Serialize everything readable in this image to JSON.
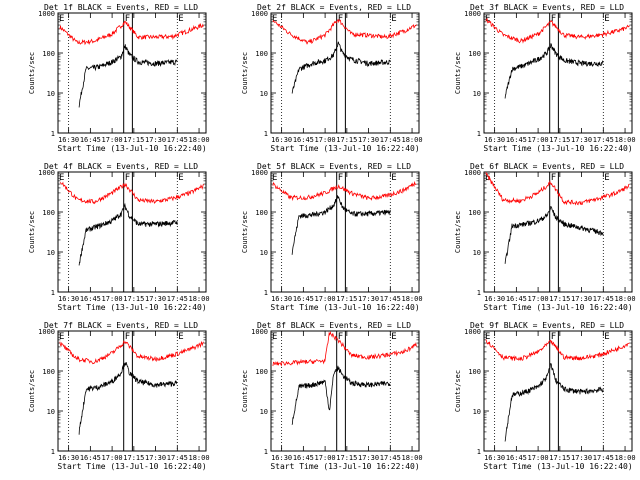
{
  "common": {
    "ylabel": "Counts/sec",
    "xlabel": "Start Time (13-Jul-10 16:22:40)",
    "xticks": [
      "16:30",
      "16:45",
      "17:00",
      "17:15",
      "17:30",
      "17:45",
      "18:00"
    ],
    "yticks": [
      "1",
      "10",
      "100",
      "1000"
    ],
    "markers": {
      "E_left": "E",
      "F": "F",
      "E_right": "E"
    },
    "colors": {
      "events": "#000000",
      "lld": "#ff0000",
      "axes": "#000000"
    }
  },
  "chart_data": [
    {
      "type": "line",
      "title": "Det 1f BLACK = Events, RED = LLD",
      "series": [
        {
          "name": "Events",
          "color": "#000000"
        },
        {
          "name": "LLD",
          "color": "#ff0000"
        }
      ],
      "xlim": [
        "16:22:40",
        "18:00"
      ],
      "ylim": [
        1,
        1000
      ],
      "yscale": "log",
      "marker_lines": [
        "16:30",
        "17:08",
        "17:14",
        "17:45"
      ],
      "events": {
        "t": [
          16.62,
          16.7,
          16.85,
          17.0,
          17.1,
          17.15,
          17.2,
          17.3,
          17.5,
          17.75
        ],
        "y": [
          5,
          40,
          45,
          60,
          80,
          150,
          90,
          60,
          55,
          60
        ]
      },
      "lld": {
        "t": [
          16.4,
          16.6,
          16.8,
          17.0,
          17.15,
          17.3,
          17.5,
          17.7,
          17.9,
          18.05
        ],
        "y": [
          450,
          180,
          200,
          300,
          600,
          250,
          250,
          260,
          380,
          500
        ]
      }
    },
    {
      "type": "line",
      "title": "Det 2f BLACK = Events, RED = LLD",
      "series": [
        {
          "name": "Events",
          "color": "#000000"
        },
        {
          "name": "LLD",
          "color": "#ff0000"
        }
      ],
      "xlim": [
        "16:22:40",
        "18:00"
      ],
      "ylim": [
        1,
        1000
      ],
      "yscale": "log",
      "marker_lines": [
        "16:30",
        "17:08",
        "17:14",
        "17:45"
      ],
      "events": {
        "t": [
          16.62,
          16.7,
          16.85,
          17.0,
          17.1,
          17.15,
          17.2,
          17.3,
          17.5,
          17.75
        ],
        "y": [
          10,
          40,
          55,
          65,
          90,
          180,
          100,
          70,
          55,
          60
        ]
      },
      "lld": {
        "t": [
          16.4,
          16.6,
          16.8,
          17.0,
          17.15,
          17.3,
          17.5,
          17.7,
          17.9,
          18.05
        ],
        "y": [
          650,
          300,
          180,
          280,
          700,
          300,
          280,
          250,
          350,
          500
        ]
      }
    },
    {
      "type": "line",
      "title": "Det 3f BLACK = Events, RED = LLD",
      "series": [
        {
          "name": "Events",
          "color": "#000000"
        },
        {
          "name": "LLD",
          "color": "#ff0000"
        }
      ],
      "xlim": [
        "16:22:40",
        "18:00"
      ],
      "ylim": [
        1,
        1000
      ],
      "yscale": "log",
      "marker_lines": [
        "16:30",
        "17:08",
        "17:14",
        "17:45"
      ],
      "events": {
        "t": [
          16.62,
          16.7,
          16.85,
          17.0,
          17.1,
          17.15,
          17.2,
          17.3,
          17.5,
          17.75
        ],
        "y": [
          8,
          40,
          50,
          70,
          100,
          160,
          100,
          65,
          55,
          55
        ]
      },
      "lld": {
        "t": [
          16.4,
          16.6,
          16.8,
          17.0,
          17.15,
          17.3,
          17.5,
          17.7,
          17.9,
          18.05
        ],
        "y": [
          700,
          280,
          200,
          300,
          600,
          280,
          250,
          280,
          350,
          450
        ]
      }
    },
    {
      "type": "line",
      "title": "Det 4f BLACK = Events, RED = LLD",
      "series": [
        {
          "name": "Events",
          "color": "#000000"
        },
        {
          "name": "LLD",
          "color": "#ff0000"
        }
      ],
      "xlim": [
        "16:22:40",
        "18:00"
      ],
      "ylim": [
        1,
        1000
      ],
      "yscale": "log",
      "marker_lines": [
        "16:30",
        "17:08",
        "17:14",
        "17:45"
      ],
      "events": {
        "t": [
          16.62,
          16.7,
          16.85,
          17.0,
          17.1,
          17.15,
          17.2,
          17.3,
          17.5,
          17.75
        ],
        "y": [
          5,
          35,
          45,
          60,
          90,
          140,
          80,
          50,
          50,
          55
        ]
      },
      "lld": {
        "t": [
          16.4,
          16.6,
          16.8,
          17.0,
          17.15,
          17.3,
          17.5,
          17.7,
          17.9,
          18.05
        ],
        "y": [
          600,
          200,
          180,
          300,
          500,
          200,
          180,
          220,
          300,
          450
        ]
      }
    },
    {
      "type": "line",
      "title": "Det 5f BLACK = Events, RED = LLD",
      "series": [
        {
          "name": "Events",
          "color": "#000000"
        },
        {
          "name": "LLD",
          "color": "#ff0000"
        }
      ],
      "xlim": [
        "16:22:40",
        "18:00"
      ],
      "ylim": [
        1,
        1000
      ],
      "yscale": "log",
      "marker_lines": [
        "16:30",
        "17:08",
        "17:14",
        "17:45"
      ],
      "events": {
        "t": [
          16.62,
          16.7,
          16.85,
          17.0,
          17.1,
          17.15,
          17.2,
          17.3,
          17.5,
          17.75
        ],
        "y": [
          10,
          80,
          85,
          100,
          150,
          250,
          130,
          90,
          90,
          100
        ]
      },
      "lld": {
        "t": [
          16.4,
          16.6,
          16.8,
          17.0,
          17.15,
          17.3,
          17.5,
          17.7,
          17.9,
          18.05
        ],
        "y": [
          500,
          230,
          230,
          300,
          450,
          300,
          220,
          250,
          350,
          550
        ]
      }
    },
    {
      "type": "line",
      "title": "Det 6f BLACK = Events, RED = LLD",
      "series": [
        {
          "name": "Events",
          "color": "#000000"
        },
        {
          "name": "LLD",
          "color": "#ff0000"
        }
      ],
      "xlim": [
        "16:22:40",
        "18:00"
      ],
      "ylim": [
        1,
        1000
      ],
      "yscale": "log",
      "marker_lines": [
        "16:30",
        "17:08",
        "17:14",
        "17:45"
      ],
      "events": {
        "t": [
          16.62,
          16.7,
          16.85,
          17.0,
          17.1,
          17.15,
          17.2,
          17.3,
          17.5,
          17.75
        ],
        "y": [
          5,
          45,
          50,
          60,
          80,
          130,
          75,
          50,
          40,
          30
        ]
      },
      "lld": {
        "t": [
          16.4,
          16.6,
          16.8,
          17.0,
          17.15,
          17.3,
          17.5,
          17.7,
          17.9,
          18.05
        ],
        "y": [
          900,
          200,
          190,
          300,
          550,
          180,
          170,
          220,
          300,
          450
        ]
      }
    },
    {
      "type": "line",
      "title": "Det 7f BLACK = Events, RED = LLD",
      "series": [
        {
          "name": "Events",
          "color": "#000000"
        },
        {
          "name": "LLD",
          "color": "#ff0000"
        }
      ],
      "xlim": [
        "16:22:40",
        "18:00"
      ],
      "ylim": [
        1,
        1000
      ],
      "yscale": "log",
      "marker_lines": [
        "16:30",
        "17:08",
        "17:14",
        "17:45"
      ],
      "events": {
        "t": [
          16.62,
          16.7,
          16.85,
          17.0,
          17.1,
          17.15,
          17.2,
          17.3,
          17.5,
          17.75
        ],
        "y": [
          3,
          35,
          40,
          55,
          90,
          170,
          90,
          55,
          45,
          50
        ]
      },
      "lld": {
        "t": [
          16.4,
          16.6,
          16.8,
          17.0,
          17.15,
          17.3,
          17.5,
          17.7,
          17.9,
          18.05
        ],
        "y": [
          500,
          200,
          170,
          280,
          550,
          230,
          200,
          250,
          350,
          500
        ]
      }
    },
    {
      "type": "line",
      "title": "Det 8f BLACK = Events, RED = LLD",
      "series": [
        {
          "name": "Events",
          "color": "#000000"
        },
        {
          "name": "LLD",
          "color": "#ff0000"
        }
      ],
      "xlim": [
        "16:22:40",
        "18:00"
      ],
      "ylim": [
        1,
        1000
      ],
      "yscale": "log",
      "marker_lines": [
        "16:30",
        "17:08",
        "17:14",
        "17:45"
      ],
      "events": {
        "t": [
          16.62,
          16.7,
          16.85,
          17.0,
          17.05,
          17.1,
          17.15,
          17.2,
          17.3,
          17.5,
          17.75
        ],
        "y": [
          5,
          40,
          45,
          55,
          10,
          90,
          120,
          80,
          50,
          45,
          50
        ]
      },
      "lld": {
        "t": [
          16.4,
          16.6,
          16.8,
          17.0,
          17.05,
          17.15,
          17.3,
          17.5,
          17.7,
          17.9,
          18.05
        ],
        "y": [
          150,
          160,
          170,
          180,
          900,
          600,
          250,
          220,
          250,
          300,
          450
        ]
      }
    },
    {
      "type": "line",
      "title": "Det 9f BLACK = Events, RED = LLD",
      "series": [
        {
          "name": "Events",
          "color": "#000000"
        },
        {
          "name": "LLD",
          "color": "#ff0000"
        }
      ],
      "xlim": [
        "16:22:40",
        "18:00"
      ],
      "ylim": [
        1,
        1000
      ],
      "yscale": "log",
      "marker_lines": [
        "16:30",
        "17:08",
        "17:14",
        "17:45"
      ],
      "events": {
        "t": [
          16.62,
          16.7,
          16.85,
          17.0,
          17.1,
          17.15,
          17.2,
          17.3,
          17.5,
          17.75
        ],
        "y": [
          2,
          25,
          30,
          40,
          70,
          150,
          60,
          35,
          30,
          35
        ]
      },
      "lld": {
        "t": [
          16.4,
          16.6,
          16.8,
          17.0,
          17.15,
          17.3,
          17.5,
          17.7,
          17.9,
          18.05
        ],
        "y": [
          600,
          220,
          200,
          300,
          550,
          220,
          210,
          250,
          350,
          500
        ]
      }
    }
  ]
}
